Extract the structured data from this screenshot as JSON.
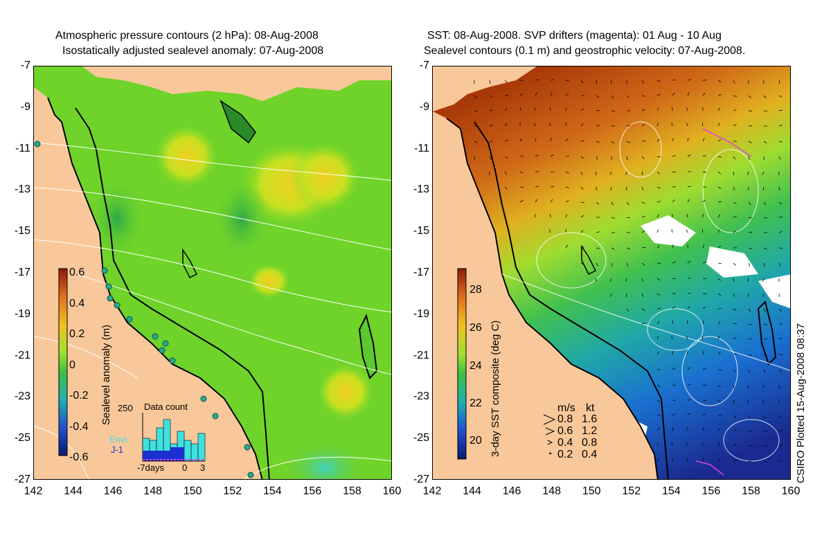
{
  "left_panel": {
    "title_line1": "Atmospheric pressure contours (2 hPa): 08-Aug-2008",
    "title_line2": "Isostatically adjusted sealevel anomaly: 07-Aug-2008",
    "colorbar": {
      "label": "Sealevel anomaly (m)",
      "ticks": [
        "0.6",
        "0.4",
        "0.2",
        "0",
        "-0.2",
        "-0.4",
        "-0.6"
      ]
    },
    "data_count": {
      "title": "Data count",
      "max_label": "250",
      "legend_envi": "Envi",
      "legend_j1": "J-1",
      "x_labels": [
        "-7days",
        "0",
        "3"
      ]
    }
  },
  "right_panel": {
    "title_line1": "SST: 08-Aug-2008. SVP drifters (magenta): 01 Aug - 10 Aug",
    "title_line2": "Sealevel contours (0.1 m) and geostrophic velocity: 07-Aug-2008.",
    "colorbar": {
      "label": "3-day SST composite (deg C)",
      "ticks": [
        "28",
        "26",
        "24",
        "22",
        "20"
      ]
    },
    "velocity_legend": {
      "header_ms": "m/s",
      "header_kt": "kt",
      "rows": [
        {
          "ms": "0.8",
          "kt": "1.6"
        },
        {
          "ms": "0.6",
          "kt": "1.2"
        },
        {
          "ms": "0.4",
          "kt": "0.8"
        },
        {
          "ms": "0.2",
          "kt": "0.4"
        }
      ]
    }
  },
  "axes": {
    "lat_labels": [
      "-7",
      "-9",
      "-11",
      "-13",
      "-15",
      "-17",
      "-19",
      "-21",
      "-23",
      "-25",
      "-27"
    ],
    "lon_labels": [
      "142",
      "144",
      "146",
      "148",
      "150",
      "152",
      "154",
      "156",
      "158",
      "160"
    ]
  },
  "footer_credit": "CSIRO Plotted 15-Aug-2008 08:37",
  "colors": {
    "land": "#f8c89a",
    "sea_green": "#6fd32a",
    "sst_warm": "#b03a08",
    "sst_cool": "#1a3fb0"
  }
}
